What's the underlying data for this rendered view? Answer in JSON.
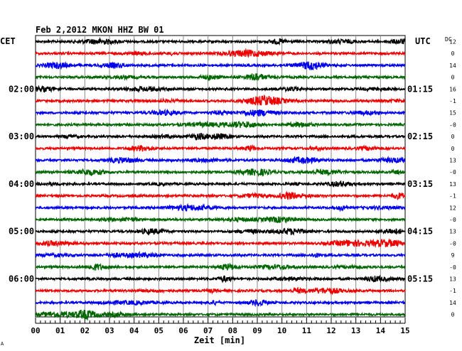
{
  "chart_data": {
    "type": "line",
    "title": "Feb 2,2012   MKON HHZ BW 01",
    "xlabel": "Zeit [min]",
    "x_ticks": [
      "00",
      "01",
      "02",
      "03",
      "04",
      "05",
      "06",
      "07",
      "08",
      "09",
      "10",
      "11",
      "12",
      "13",
      "14",
      "15"
    ],
    "xlim": [
      0,
      15
    ],
    "left_axis_label": "CET",
    "right_axis_label": "UTC",
    "dc_header": "DC",
    "left_hour_labels": [
      "02:00",
      "03:00",
      "04:00",
      "05:00",
      "06:00"
    ],
    "right_hour_labels": [
      "01:15",
      "02:15",
      "03:15",
      "04:15",
      "05:15"
    ],
    "dc_values": [
      "12",
      "0",
      "14",
      "0",
      "16",
      "-1",
      "15",
      "-0",
      "0",
      "0",
      "13",
      "-0",
      "13",
      "-1",
      "12",
      "-0",
      "13",
      "-0",
      "9",
      "-0",
      "13",
      "-1",
      "14",
      "0"
    ],
    "trace_colors": [
      "#000000",
      "#ee0000",
      "#0000ee",
      "#006600"
    ],
    "trace_count": 24,
    "grid": true,
    "corner_mark": "A"
  }
}
